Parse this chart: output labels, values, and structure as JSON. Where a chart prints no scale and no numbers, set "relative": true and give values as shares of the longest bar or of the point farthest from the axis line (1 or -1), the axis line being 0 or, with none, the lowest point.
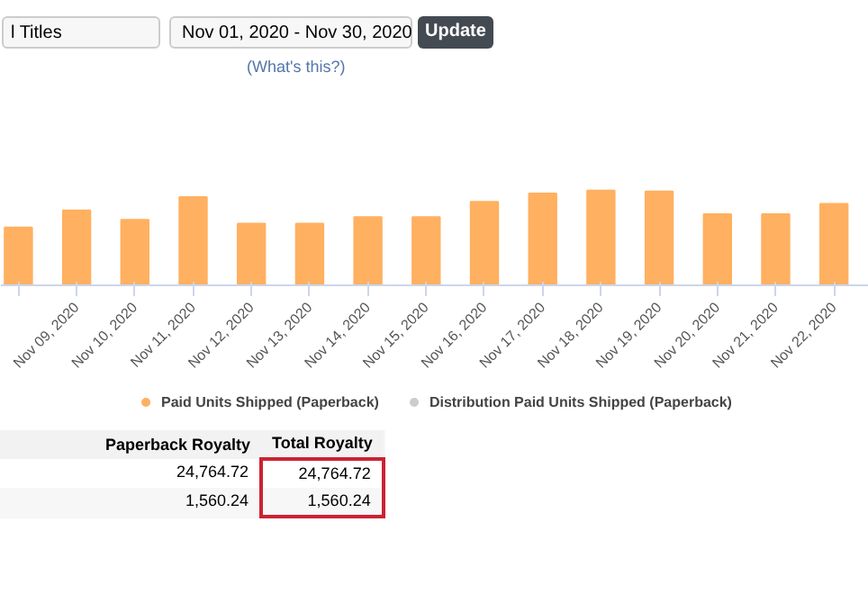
{
  "chart_data": {
    "type": "bar",
    "relative": true,
    "categories": [
      null,
      "Nov 09, 2020",
      "Nov 10, 2020",
      "Nov 11, 2020",
      "Nov 12, 2020",
      "Nov 13, 2020",
      "Nov 14, 2020",
      "Nov 15, 2020",
      "Nov 16, 2020",
      "Nov 17, 2020",
      "Nov 18, 2020",
      "Nov 19, 2020",
      "Nov 20, 2020",
      "Nov 21, 2020",
      "Nov 22, 2020"
    ],
    "series": [
      {
        "name": "Paid Units Shipped (Paperback)",
        "color": "#ffb061",
        "values": [
          0.61,
          0.79,
          0.69,
          0.93,
          0.65,
          0.65,
          0.72,
          0.72,
          0.88,
          0.97,
          1,
          0.99,
          0.75,
          0.75,
          0.86
        ]
      },
      {
        "name": "Distribution Paid Units Shipped (Paperback)",
        "color": "#cccccc",
        "values": [
          null,
          null,
          null,
          null,
          null,
          null,
          null,
          null,
          null,
          null,
          null,
          null,
          null,
          null,
          null
        ]
      }
    ],
    "legend": "bottom",
    "annotations": [
      "l Titles",
      "Nov 01, 2020 - Nov 30, 2020",
      "Update",
      "(What's this?)",
      "Paperback Royalty",
      "Total Royalty",
      "24,764.72",
      "24,764.72",
      "1,560.24",
      "1,560.24"
    ]
  }
}
